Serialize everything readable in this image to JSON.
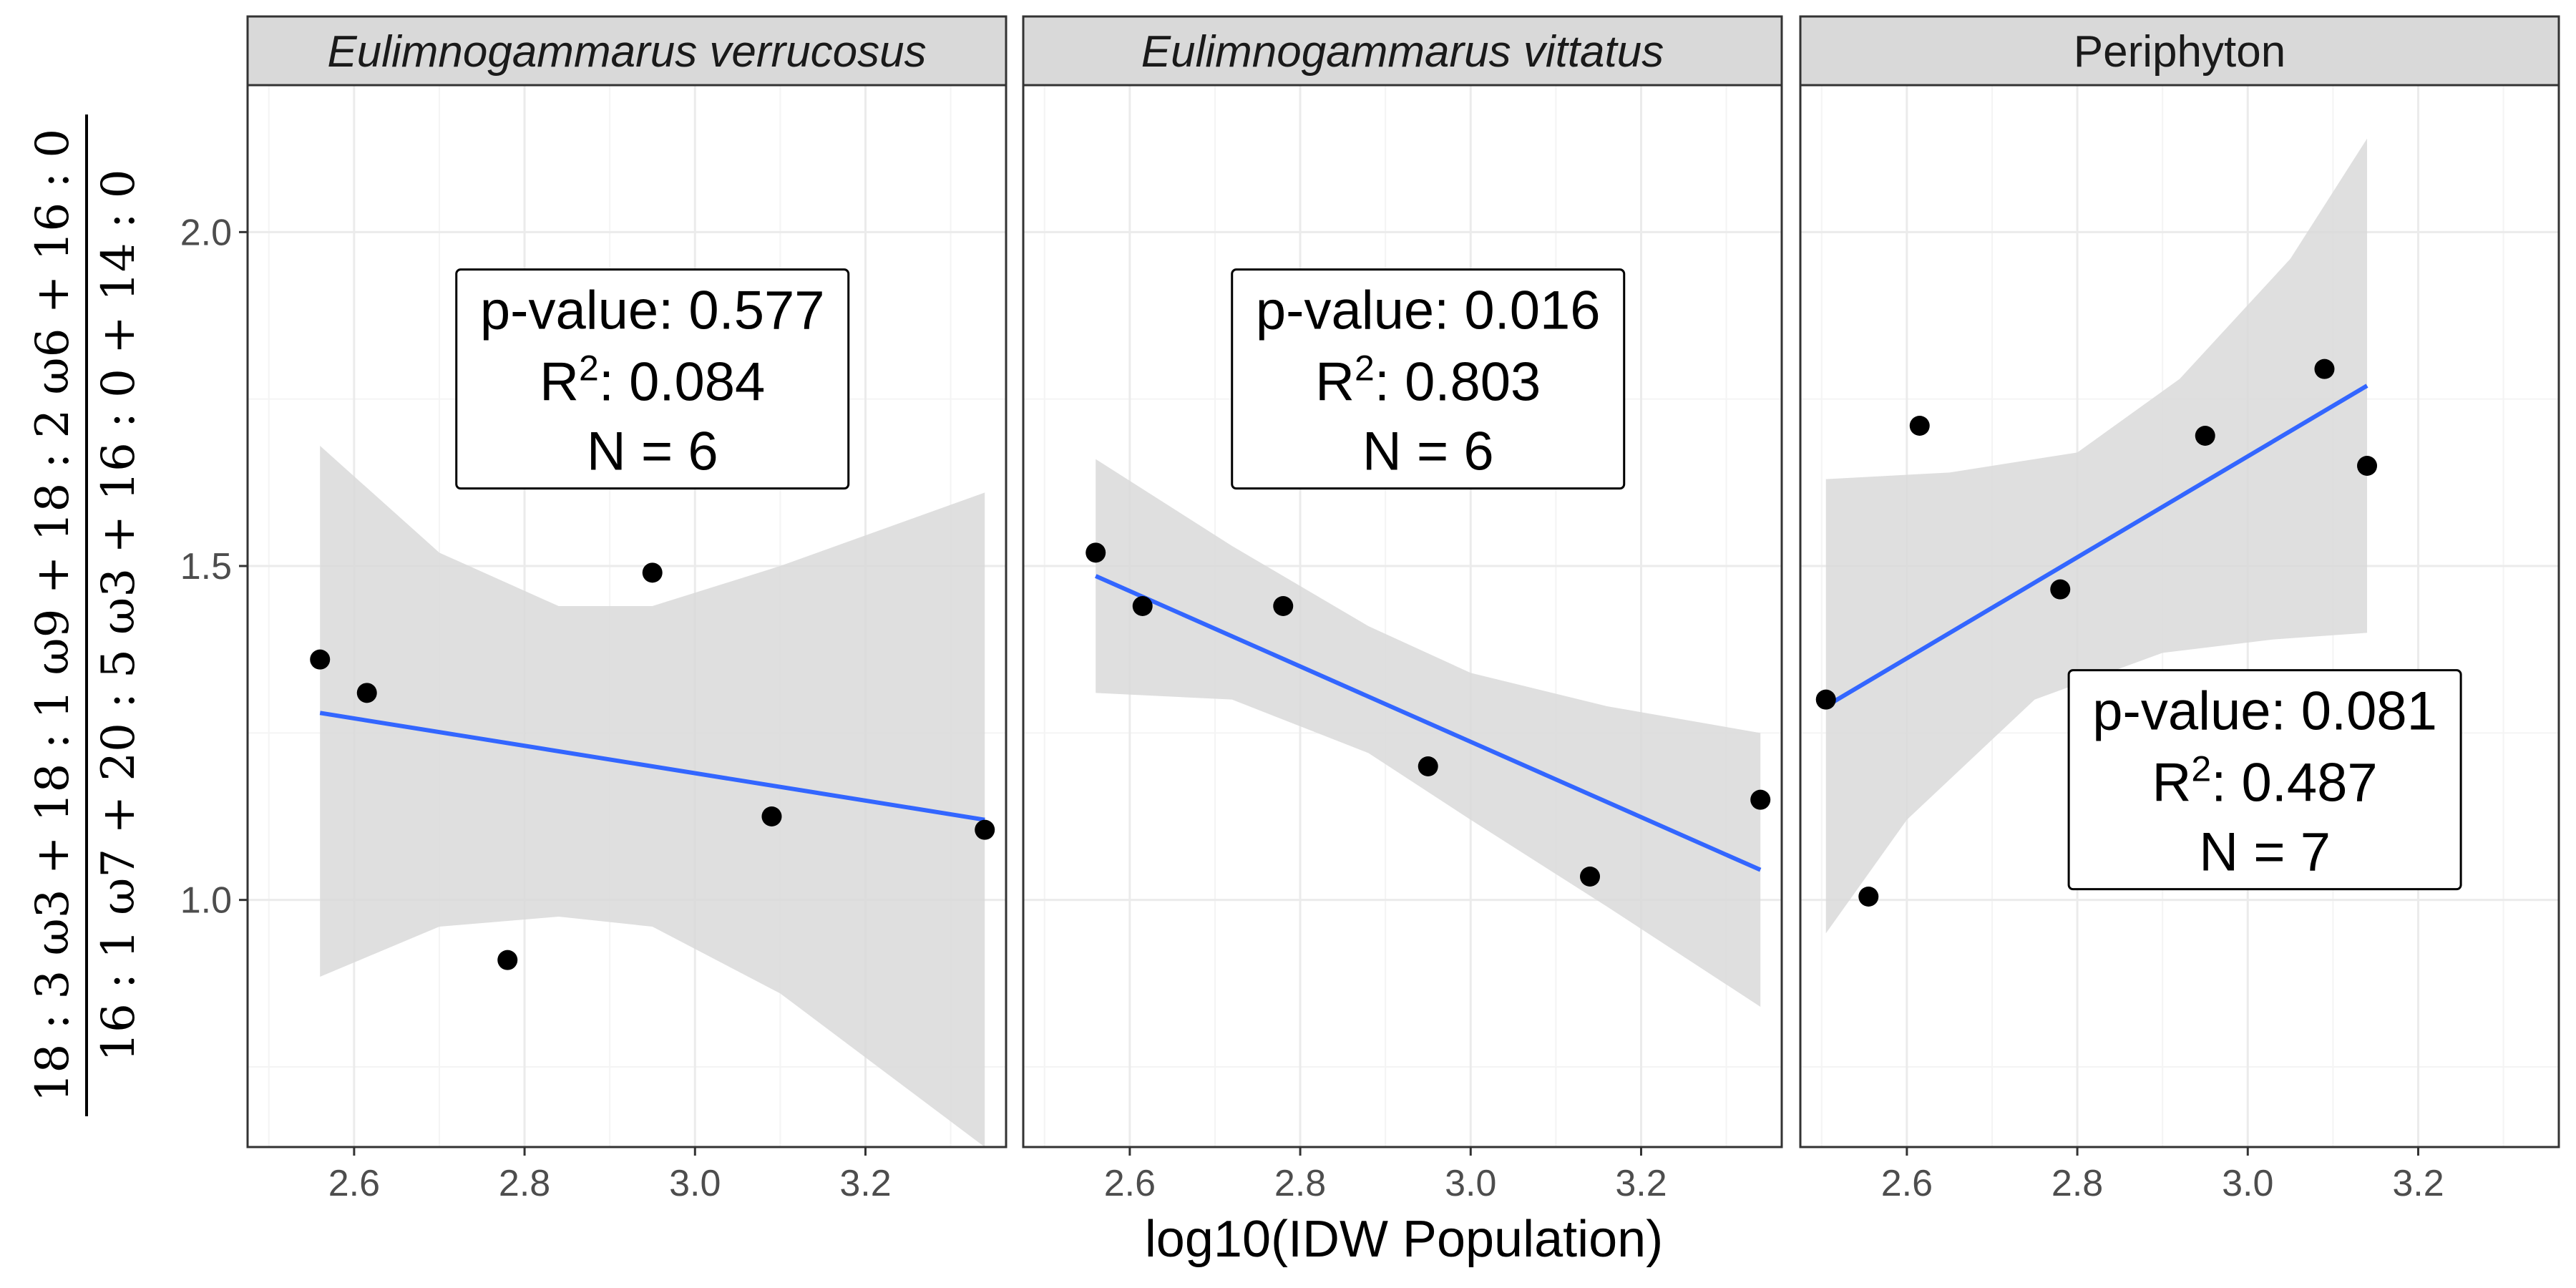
{
  "chart_data": {
    "type": "scatter",
    "xlabel": "log10(IDW Population)",
    "ylabel_numerator": "18 : 3 ω3 + 18 : 1 ω9 + 18 : 2 ω6 + 16 : 0",
    "ylabel_denominator": "16 : 1 ω7 + 20 : 5 ω3 + 16 : 0 + 14 : 0",
    "xlim": [
      2.475,
      3.365
    ],
    "ylim": [
      0.63,
      2.22
    ],
    "x_ticks": [
      2.6,
      2.8,
      3.0,
      3.2
    ],
    "x_tick_labels": [
      "2.6",
      "2.8",
      "3.0",
      "3.2"
    ],
    "y_ticks": [
      1.0,
      1.5,
      2.0
    ],
    "y_tick_labels": [
      "1.0",
      "1.5",
      "2.0"
    ],
    "grid": true,
    "panels": [
      {
        "title": "Eulimnogammarus verrucosus",
        "italic": true,
        "points": [
          [
            2.56,
            1.36
          ],
          [
            2.615,
            1.31
          ],
          [
            2.78,
            0.91
          ],
          [
            2.95,
            1.49
          ],
          [
            3.09,
            1.125
          ],
          [
            3.34,
            1.105
          ]
        ],
        "fit": {
          "x": [
            2.56,
            3.34
          ],
          "y": [
            1.28,
            1.12
          ]
        },
        "ci_upper": [
          [
            2.56,
            1.68
          ],
          [
            2.7,
            1.52
          ],
          [
            2.84,
            1.44
          ],
          [
            2.95,
            1.44
          ],
          [
            3.1,
            1.5
          ],
          [
            3.34,
            1.61
          ]
        ],
        "ci_lower": [
          [
            2.56,
            0.885
          ],
          [
            2.7,
            0.96
          ],
          [
            2.84,
            0.975
          ],
          [
            2.95,
            0.96
          ],
          [
            3.1,
            0.86
          ],
          [
            3.34,
            0.63
          ]
        ],
        "annotation": {
          "p_line": "p-value: 0.577",
          "r2_prefix": "R",
          "r2_sup": "2",
          "r2_value": ": 0.084",
          "n_line": "N = 6",
          "anchor": [
            2.95,
            1.78
          ]
        }
      },
      {
        "title": "Eulimnogammarus vittatus",
        "italic": true,
        "points": [
          [
            2.56,
            1.52
          ],
          [
            2.615,
            1.44
          ],
          [
            2.78,
            1.44
          ],
          [
            2.95,
            1.2
          ],
          [
            3.14,
            1.035
          ],
          [
            3.34,
            1.15
          ]
        ],
        "fit": {
          "x": [
            2.56,
            3.34
          ],
          "y": [
            1.485,
            1.045
          ]
        },
        "ci_upper": [
          [
            2.56,
            1.66
          ],
          [
            2.72,
            1.53
          ],
          [
            2.88,
            1.41
          ],
          [
            3.0,
            1.34
          ],
          [
            3.16,
            1.29
          ],
          [
            3.34,
            1.25
          ]
        ],
        "ci_lower": [
          [
            2.56,
            1.31
          ],
          [
            2.72,
            1.3
          ],
          [
            2.88,
            1.22
          ],
          [
            3.0,
            1.12
          ],
          [
            3.16,
            0.99
          ],
          [
            3.34,
            0.84
          ]
        ],
        "annotation": {
          "p_line": "p-value: 0.016",
          "r2_prefix": "R",
          "r2_sup": "2",
          "r2_value": ": 0.803",
          "n_line": "N = 6",
          "anchor": [
            2.95,
            1.78
          ]
        }
      },
      {
        "title": "Periphyton",
        "italic": false,
        "points": [
          [
            2.505,
            1.3
          ],
          [
            2.555,
            1.005
          ],
          [
            2.615,
            1.71
          ],
          [
            2.78,
            1.465
          ],
          [
            2.95,
            1.695
          ],
          [
            3.09,
            1.795
          ],
          [
            3.14,
            1.65
          ]
        ],
        "fit": {
          "x": [
            2.505,
            3.14
          ],
          "y": [
            1.29,
            1.77
          ]
        },
        "ci_upper": [
          [
            2.505,
            1.63
          ],
          [
            2.65,
            1.64
          ],
          [
            2.8,
            1.67
          ],
          [
            2.92,
            1.78
          ],
          [
            3.05,
            1.96
          ],
          [
            3.14,
            2.14
          ]
        ],
        "ci_lower": [
          [
            2.505,
            0.95
          ],
          [
            2.6,
            1.12
          ],
          [
            2.75,
            1.3
          ],
          [
            2.9,
            1.37
          ],
          [
            3.03,
            1.39
          ],
          [
            3.14,
            1.4
          ]
        ],
        "annotation": {
          "p_line": "p-value: 0.081",
          "r2_prefix": "R",
          "r2_sup": "2",
          "r2_value": ": 0.487",
          "n_line": "N = 7",
          "anchor": [
            3.02,
            1.18
          ]
        }
      }
    ]
  },
  "colors": {
    "fit_line": "#3366FF",
    "ribbon": "#d9d9d9",
    "points": "#000000",
    "strip_bg": "#d9d9d9",
    "grid_major": "#ebebeb",
    "grid_minor": "#f4f4f4",
    "panel_border": "#333333"
  }
}
